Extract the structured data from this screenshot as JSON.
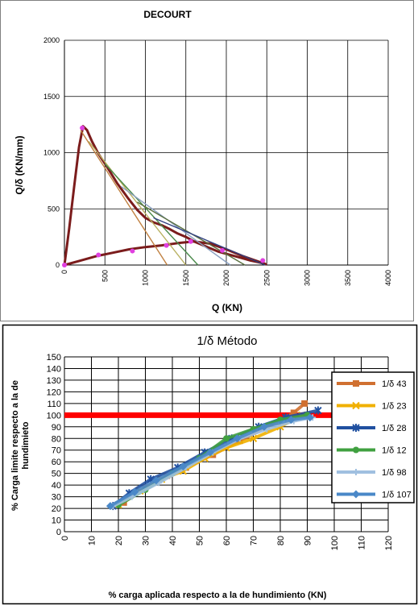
{
  "chart_data": [
    {
      "type": "line",
      "title": "DECOURT",
      "ylabel": "Q/δ   (KN/mm)",
      "xlabel": "Q (KN)",
      "xlim": [
        0,
        4000
      ],
      "ylim": [
        0,
        2000
      ],
      "x_ticks": [
        "0",
        "500",
        "1000",
        "1500",
        "2000",
        "2500",
        "3000",
        "3500",
        "4000"
      ],
      "y_ticks": [
        "0",
        "500",
        "1000",
        "1500",
        "2000"
      ],
      "grid": true,
      "legend": "none",
      "series": [
        {
          "color": "#7b1c1c",
          "values": [
            [
              0,
              0
            ],
            [
              60,
              330
            ],
            [
              120,
              700
            ],
            [
              180,
              1050
            ],
            [
              230,
              1235
            ],
            [
              280,
              1200
            ],
            [
              340,
              1100
            ],
            [
              420,
              990
            ],
            [
              520,
              880
            ],
            [
              650,
              730
            ],
            [
              780,
              600
            ],
            [
              900,
              490
            ],
            [
              1000,
              420
            ],
            [
              1100,
              380
            ],
            [
              1200,
              355
            ],
            [
              1300,
              320
            ],
            [
              1400,
              280
            ],
            [
              1500,
              250
            ],
            [
              1600,
              210
            ],
            [
              1700,
              180
            ],
            [
              1800,
              150
            ],
            [
              1900,
              120
            ],
            [
              2000,
              100
            ],
            [
              2100,
              80
            ],
            [
              2200,
              60
            ],
            [
              2300,
              40
            ],
            [
              2400,
              25
            ],
            [
              2480,
              10
            ]
          ]
        },
        {
          "color": "#7b1c1c",
          "values": [
            [
              0,
              0
            ],
            [
              200,
              40
            ],
            [
              400,
              80
            ],
            [
              600,
              110
            ],
            [
              800,
              140
            ],
            [
              1000,
              160
            ],
            [
              1200,
              175
            ],
            [
              1400,
              195
            ],
            [
              1600,
              210
            ],
            [
              1800,
              190
            ],
            [
              2000,
              140
            ],
            [
              2200,
              80
            ],
            [
              2400,
              30
            ],
            [
              2500,
              5
            ]
          ]
        },
        {
          "color": "#c08040",
          "values": [
            [
              200,
              1200
            ],
            [
              1270,
              0
            ]
          ]
        },
        {
          "color": "#b8b060",
          "values": [
            [
              300,
              1100
            ],
            [
              1500,
              0
            ]
          ]
        },
        {
          "color": "#4a8a4a",
          "values": [
            [
              500,
              900
            ],
            [
              1650,
              0
            ]
          ]
        },
        {
          "color": "#8aa0c0",
          "values": [
            [
              700,
              700
            ],
            [
              2050,
              0
            ]
          ]
        },
        {
          "color": "#5a7040",
          "values": [
            [
              900,
              560
            ],
            [
              2230,
              0
            ]
          ]
        },
        {
          "color": "#304080",
          "values": [
            [
              1100,
              420
            ],
            [
              2480,
              0
            ]
          ]
        }
      ],
      "markers": [
        [
          0,
          0
        ],
        [
          220,
          1220
        ],
        [
          420,
          90
        ],
        [
          840,
          125
        ],
        [
          1260,
          175
        ],
        [
          1560,
          210
        ],
        [
          1950,
          130
        ],
        [
          2450,
          40
        ]
      ]
    },
    {
      "type": "line",
      "title": "1/δ Método",
      "ylabel": "% Carga limite respecto a la de hundimieto",
      "xlabel": "% carga aplicada respecto a la de hundimiento (KN)",
      "xlim": [
        0,
        120
      ],
      "ylim": [
        0,
        150
      ],
      "x_ticks": [
        "0",
        "10",
        "20",
        "30",
        "40",
        "50",
        "60",
        "70",
        "80",
        "90",
        "100",
        "110",
        "120"
      ],
      "y_ticks": [
        "0",
        "10",
        "20",
        "30",
        "40",
        "50",
        "60",
        "70",
        "80",
        "90",
        "100",
        "110",
        "120",
        "130",
        "140",
        "150"
      ],
      "grid": true,
      "legend": "right",
      "reference_line": {
        "y": 100,
        "color": "#ff0000"
      },
      "series": [
        {
          "name": "1/δ 43",
          "color": "#d07030",
          "marker": "square",
          "values": [
            [
              22,
              25
            ],
            [
              30,
              38
            ],
            [
              38,
              48
            ],
            [
              45,
              55
            ],
            [
              55,
              66
            ],
            [
              65,
              78
            ],
            [
              75,
              90
            ],
            [
              85,
              102
            ],
            [
              89,
              110
            ]
          ]
        },
        {
          "name": "1/δ 23",
          "color": "#f0b000",
          "marker": "cross",
          "values": [
            [
              20,
              23
            ],
            [
              28,
              35
            ],
            [
              36,
              45
            ],
            [
              44,
              52
            ],
            [
              52,
              63
            ],
            [
              60,
              72
            ],
            [
              70,
              80
            ],
            [
              80,
              90
            ],
            [
              88,
              100
            ]
          ]
        },
        {
          "name": "1/δ 28",
          "color": "#2050a0",
          "marker": "star",
          "values": [
            [
              18,
              22
            ],
            [
              24,
              33
            ],
            [
              32,
              45
            ],
            [
              42,
              55
            ],
            [
              52,
              68
            ],
            [
              62,
              80
            ],
            [
              72,
              90
            ],
            [
              82,
              98
            ],
            [
              94,
              104
            ]
          ]
        },
        {
          "name": "1/δ 12",
          "color": "#40a040",
          "marker": "circle",
          "values": [
            [
              20,
              23
            ],
            [
              30,
              36
            ],
            [
              40,
              50
            ],
            [
              50,
              63
            ],
            [
              60,
              80
            ],
            [
              70,
              88
            ],
            [
              80,
              96
            ],
            [
              90,
              100
            ]
          ]
        },
        {
          "name": "1/δ 98",
          "color": "#a0c0e0",
          "marker": "plus",
          "values": [
            [
              18,
              22
            ],
            [
              25,
              30
            ],
            [
              35,
              42
            ],
            [
              45,
              55
            ],
            [
              55,
              68
            ],
            [
              65,
              80
            ],
            [
              75,
              88
            ],
            [
              85,
              95
            ],
            [
              92,
              98
            ]
          ]
        },
        {
          "name": "1/δ 107",
          "color": "#4a88c8",
          "marker": "diamond",
          "values": [
            [
              17,
              22
            ],
            [
              26,
              34
            ],
            [
              34,
              44
            ],
            [
              44,
              56
            ],
            [
              54,
              68
            ],
            [
              64,
              80
            ],
            [
              74,
              90
            ],
            [
              84,
              96
            ],
            [
              91,
              98
            ]
          ]
        }
      ]
    }
  ]
}
